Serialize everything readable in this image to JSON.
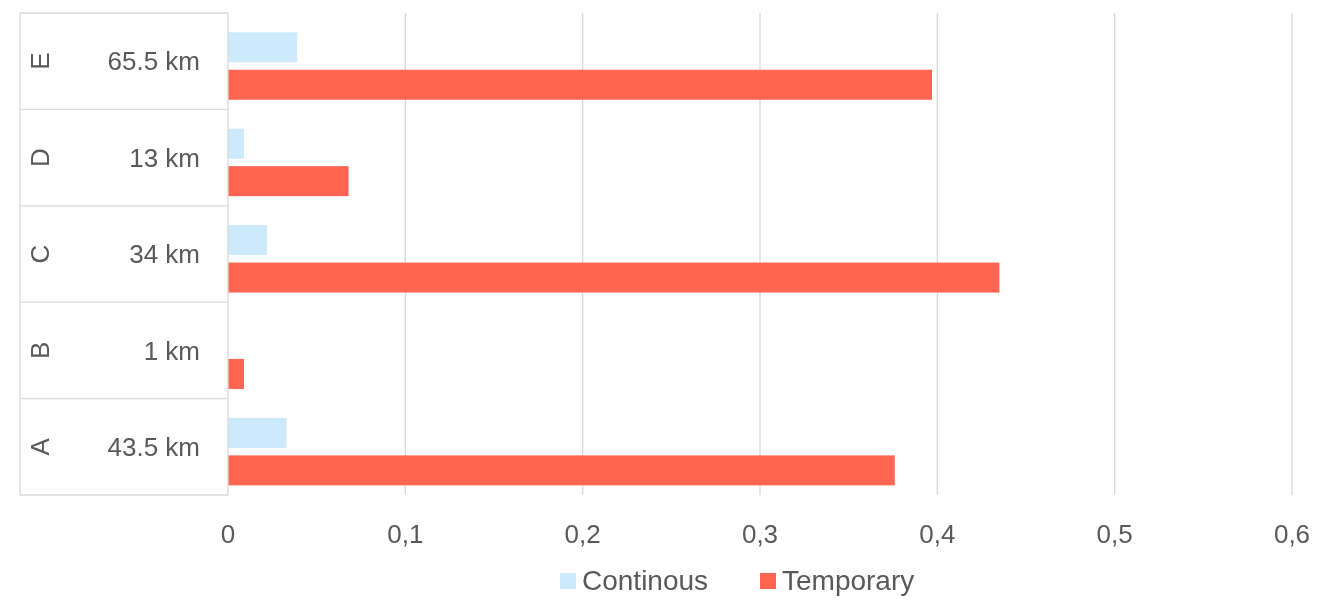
{
  "chart_data": {
    "type": "bar",
    "orientation": "horizontal",
    "categories": [
      "65.5 km",
      "13 km",
      "34 km",
      "1 km",
      "43.5 km"
    ],
    "series": [
      {
        "name": "Continous",
        "color": "#cdeafc",
        "values": [
          0.039,
          0.009,
          0.022,
          0,
          0.033
        ]
      },
      {
        "name": "Temporary",
        "color": "#ff6550",
        "values": [
          0.397,
          0.068,
          0.435,
          0.009,
          0.376
        ]
      }
    ],
    "xlim": [
      0,
      0.6
    ],
    "xticks": [
      0,
      {
        "value": 0.1,
        "label": "0,1"
      },
      {
        "value": 0.2,
        "label": "0,2"
      },
      {
        "value": 0.3,
        "label": "0,3"
      },
      {
        "value": 0.4,
        "label": "0,4"
      },
      {
        "value": 0.5,
        "label": "0,5"
      },
      {
        "value": 0.6,
        "label": "0,6"
      }
    ],
    "annotations": [
      "E",
      "D",
      "C",
      "B",
      "A"
    ],
    "grid": "x",
    "legend": "bottom"
  }
}
